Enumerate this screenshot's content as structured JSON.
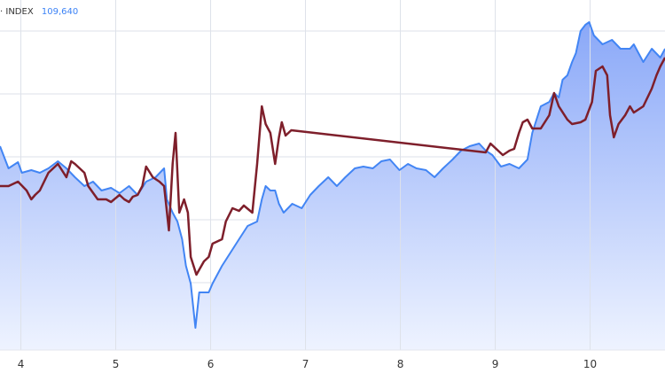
{
  "legend": {
    "prefix": "·",
    "name": "INDEX",
    "value": "109,640"
  },
  "colors": {
    "index_line": "#4285f4",
    "index_fill_top": "#8aa8f8",
    "index_fill_bottom": "#eef3ff",
    "second_line": "#7e1f2b",
    "grid": "#dde1ea"
  },
  "chart_data": {
    "type": "area",
    "title": "",
    "xlabel": "",
    "ylabel": "",
    "x_ticks": [
      "4",
      "5",
      "6",
      "7",
      "8",
      "9",
      "10"
    ],
    "xlim": [
      3.78,
      10.79
    ],
    "ylim": [
      -5,
      390
    ],
    "grid": true,
    "y_axis_labels_shown": false,
    "series": [
      {
        "name": "INDEX",
        "type": "area",
        "points": [
          [
            3.78,
            225
          ],
          [
            3.87,
            200
          ],
          [
            3.97,
            207
          ],
          [
            4.01,
            195
          ],
          [
            4.11,
            198
          ],
          [
            4.2,
            195
          ],
          [
            4.29,
            200
          ],
          [
            4.39,
            208
          ],
          [
            4.48,
            200
          ],
          [
            4.57,
            190
          ],
          [
            4.67,
            180
          ],
          [
            4.76,
            185
          ],
          [
            4.85,
            175
          ],
          [
            4.95,
            178
          ],
          [
            5.04,
            172
          ],
          [
            5.14,
            180
          ],
          [
            5.23,
            170
          ],
          [
            5.32,
            185
          ],
          [
            5.42,
            190
          ],
          [
            5.51,
            200
          ],
          [
            5.54,
            165
          ],
          [
            5.6,
            150
          ],
          [
            5.65,
            140
          ],
          [
            5.7,
            120
          ],
          [
            5.74,
            90
          ],
          [
            5.79,
            70
          ],
          [
            5.84,
            20
          ],
          [
            5.88,
            60
          ],
          [
            5.98,
            60
          ],
          [
            6.02,
            70
          ],
          [
            6.12,
            90
          ],
          [
            6.21,
            105
          ],
          [
            6.3,
            120
          ],
          [
            6.39,
            135
          ],
          [
            6.49,
            140
          ],
          [
            6.54,
            165
          ],
          [
            6.58,
            180
          ],
          [
            6.63,
            175
          ],
          [
            6.68,
            175
          ],
          [
            6.72,
            160
          ],
          [
            6.77,
            150
          ],
          [
            6.86,
            160
          ],
          [
            6.96,
            155
          ],
          [
            7.05,
            170
          ],
          [
            7.14,
            180
          ],
          [
            7.24,
            190
          ],
          [
            7.33,
            180
          ],
          [
            7.42,
            190
          ],
          [
            7.52,
            200
          ],
          [
            7.61,
            202
          ],
          [
            7.71,
            200
          ],
          [
            7.8,
            208
          ],
          [
            7.89,
            210
          ],
          [
            7.99,
            198
          ],
          [
            8.08,
            205
          ],
          [
            8.17,
            200
          ],
          [
            8.27,
            198
          ],
          [
            8.36,
            190
          ],
          [
            8.45,
            200
          ],
          [
            8.55,
            210
          ],
          [
            8.64,
            220
          ],
          [
            8.73,
            225
          ],
          [
            8.83,
            228
          ],
          [
            8.9,
            220
          ],
          [
            8.97,
            215
          ],
          [
            9.06,
            202
          ],
          [
            9.15,
            205
          ],
          [
            9.25,
            200
          ],
          [
            9.34,
            210
          ],
          [
            9.39,
            240
          ],
          [
            9.48,
            270
          ],
          [
            9.57,
            275
          ],
          [
            9.62,
            285
          ],
          [
            9.67,
            280
          ],
          [
            9.71,
            300
          ],
          [
            9.76,
            305
          ],
          [
            9.81,
            320
          ],
          [
            9.85,
            330
          ],
          [
            9.9,
            355
          ],
          [
            9.95,
            362
          ],
          [
            9.99,
            365
          ],
          [
            10.04,
            350
          ],
          [
            10.13,
            340
          ],
          [
            10.23,
            345
          ],
          [
            10.32,
            335
          ],
          [
            10.42,
            335
          ],
          [
            10.46,
            340
          ],
          [
            10.56,
            320
          ],
          [
            10.65,
            335
          ],
          [
            10.74,
            325
          ],
          [
            10.79,
            335
          ]
        ]
      },
      {
        "type": "line",
        "points": [
          [
            3.78,
            180
          ],
          [
            3.87,
            180
          ],
          [
            3.97,
            185
          ],
          [
            4.06,
            175
          ],
          [
            4.11,
            165
          ],
          [
            4.15,
            170
          ],
          [
            4.2,
            175
          ],
          [
            4.29,
            195
          ],
          [
            4.39,
            205
          ],
          [
            4.48,
            190
          ],
          [
            4.53,
            208
          ],
          [
            4.57,
            205
          ],
          [
            4.67,
            195
          ],
          [
            4.71,
            180
          ],
          [
            4.81,
            165
          ],
          [
            4.9,
            165
          ],
          [
            4.95,
            162
          ],
          [
            5.04,
            170
          ],
          [
            5.09,
            165
          ],
          [
            5.14,
            162
          ],
          [
            5.18,
            168
          ],
          [
            5.23,
            170
          ],
          [
            5.28,
            180
          ],
          [
            5.32,
            202
          ],
          [
            5.39,
            190
          ],
          [
            5.46,
            185
          ],
          [
            5.51,
            180
          ],
          [
            5.56,
            130
          ],
          [
            5.6,
            205
          ],
          [
            5.63,
            240
          ],
          [
            5.67,
            150
          ],
          [
            5.72,
            165
          ],
          [
            5.76,
            150
          ],
          [
            5.79,
            100
          ],
          [
            5.85,
            80
          ],
          [
            5.93,
            95
          ],
          [
            5.98,
            100
          ],
          [
            6.02,
            115
          ],
          [
            6.12,
            120
          ],
          [
            6.16,
            140
          ],
          [
            6.23,
            155
          ],
          [
            6.3,
            152
          ],
          [
            6.35,
            158
          ],
          [
            6.44,
            150
          ],
          [
            6.49,
            205
          ],
          [
            6.54,
            270
          ],
          [
            6.58,
            250
          ],
          [
            6.63,
            240
          ],
          [
            6.68,
            205
          ],
          [
            6.72,
            235
          ],
          [
            6.75,
            252
          ],
          [
            6.79,
            237
          ],
          [
            6.85,
            243
          ],
          [
            8.9,
            218
          ],
          [
            8.95,
            228
          ],
          [
            9.01,
            222
          ],
          [
            9.08,
            215
          ],
          [
            9.15,
            220
          ],
          [
            9.2,
            222
          ],
          [
            9.25,
            240
          ],
          [
            9.29,
            252
          ],
          [
            9.34,
            255
          ],
          [
            9.39,
            245
          ],
          [
            9.48,
            245
          ],
          [
            9.57,
            260
          ],
          [
            9.62,
            285
          ],
          [
            9.67,
            270
          ],
          [
            9.76,
            255
          ],
          [
            9.81,
            250
          ],
          [
            9.9,
            252
          ],
          [
            9.95,
            255
          ],
          [
            10.02,
            275
          ],
          [
            10.06,
            310
          ],
          [
            10.13,
            315
          ],
          [
            10.18,
            305
          ],
          [
            10.21,
            260
          ],
          [
            10.25,
            235
          ],
          [
            10.3,
            250
          ],
          [
            10.37,
            260
          ],
          [
            10.42,
            270
          ],
          [
            10.46,
            263
          ],
          [
            10.56,
            270
          ],
          [
            10.65,
            290
          ],
          [
            10.7,
            305
          ],
          [
            10.74,
            315
          ],
          [
            10.79,
            325
          ]
        ]
      }
    ]
  }
}
